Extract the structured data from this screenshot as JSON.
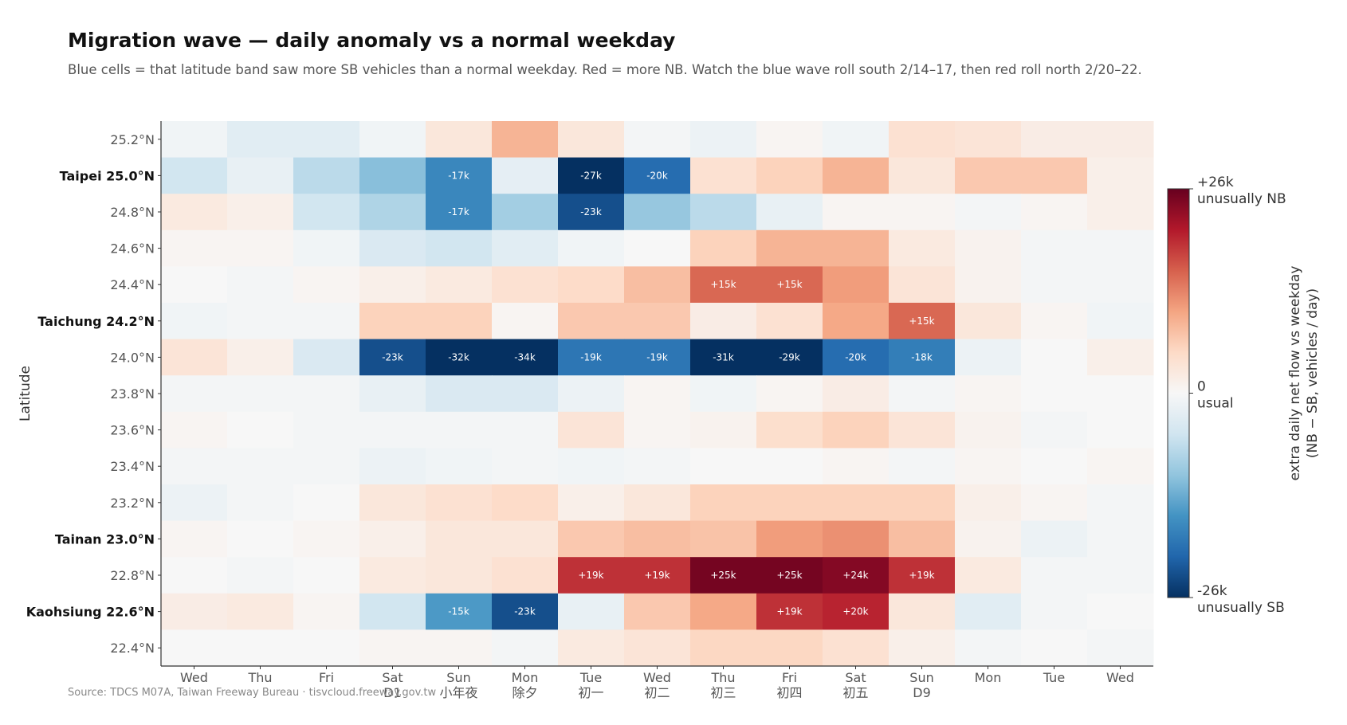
{
  "title": "Migration wave — daily anomaly vs a normal weekday",
  "subtitle": "Blue cells = that latitude band saw more SB vehicles than a normal weekday. Red = more NB. Watch the blue wave roll south 2/14–17, then red roll north 2/20–22.",
  "source": "Source: TDCS M07A, Taiwan Freeway Bureau  ·  tisvcloud.freeway.gov.tw",
  "chart_data": {
    "type": "heatmap",
    "ylabel": "Latitude",
    "colorbar": {
      "label_line1": "extra daily net flow vs weekday",
      "label_line2": "(NB − SB, vehicles / day)",
      "max_value": "+26k",
      "max_desc": "unusually NB",
      "mid_value": "0",
      "mid_desc": "usual",
      "min_value": "-26k",
      "min_desc": "unusually SB",
      "range": [
        -26,
        26
      ],
      "colors_low_to_high": [
        "#053061",
        "#2166ac",
        "#4393c3",
        "#92c5de",
        "#d1e5f0",
        "#f7f7f7",
        "#fddbc7",
        "#f4a582",
        "#d6604d",
        "#b2182b",
        "#67001f"
      ]
    },
    "x": [
      {
        "day": "Wed",
        "note": ""
      },
      {
        "day": "Thu",
        "note": ""
      },
      {
        "day": "Fri",
        "note": ""
      },
      {
        "day": "Sat",
        "note": "D1"
      },
      {
        "day": "Sun",
        "note": "小年夜"
      },
      {
        "day": "Mon",
        "note": "除夕"
      },
      {
        "day": "Tue",
        "note": "初一"
      },
      {
        "day": "Wed",
        "note": "初二"
      },
      {
        "day": "Thu",
        "note": "初三"
      },
      {
        "day": "Fri",
        "note": "初四"
      },
      {
        "day": "Sat",
        "note": "初五"
      },
      {
        "day": "Sun",
        "note": "D9"
      },
      {
        "day": "Mon",
        "note": ""
      },
      {
        "day": "Tue",
        "note": ""
      },
      {
        "day": "Wed",
        "note": ""
      }
    ],
    "y": [
      {
        "lat": "25.2°N",
        "city": ""
      },
      {
        "lat": "25.0°N",
        "city": "Taipei"
      },
      {
        "lat": "24.8°N",
        "city": ""
      },
      {
        "lat": "24.6°N",
        "city": ""
      },
      {
        "lat": "24.4°N",
        "city": ""
      },
      {
        "lat": "24.2°N",
        "city": "Taichung"
      },
      {
        "lat": "24.0°N",
        "city": ""
      },
      {
        "lat": "23.8°N",
        "city": ""
      },
      {
        "lat": "23.6°N",
        "city": ""
      },
      {
        "lat": "23.4°N",
        "city": ""
      },
      {
        "lat": "23.2°N",
        "city": ""
      },
      {
        "lat": "23.0°N",
        "city": "Tainan"
      },
      {
        "lat": "22.8°N",
        "city": ""
      },
      {
        "lat": "22.6°N",
        "city": "Kaohsiung"
      },
      {
        "lat": "22.4°N",
        "city": ""
      }
    ],
    "values_k": [
      [
        -1,
        -3,
        -3,
        -1,
        3,
        9,
        3,
        -0.5,
        -1.5,
        0.5,
        -1,
        4,
        3.5,
        2,
        2
      ],
      [
        -5,
        -2,
        -7,
        -11,
        -17,
        -2.5,
        -27,
        -20,
        4,
        6,
        9,
        3,
        7,
        7,
        1.5
      ],
      [
        2.5,
        1.5,
        -5,
        -8,
        -17,
        -9,
        -23,
        -10,
        -7,
        -2,
        0.5,
        0.5,
        -0.5,
        0.5,
        1.5
      ],
      [
        0.5,
        0.5,
        -1,
        -4,
        -5,
        -3,
        -1,
        0,
        6,
        9,
        9,
        2.5,
        1,
        -0.5,
        -0.5
      ],
      [
        0,
        -0.5,
        0.5,
        1.5,
        2.5,
        4,
        5,
        8,
        15,
        15,
        11,
        3.5,
        1,
        -0.5,
        -0.5
      ],
      [
        -1,
        -0.5,
        -0.5,
        6,
        6,
        0.5,
        7,
        7,
        2,
        4,
        10,
        15,
        3,
        0.5,
        -1
      ],
      [
        3.5,
        1.5,
        -4,
        -23,
        -32,
        -34,
        -19,
        -19,
        -31,
        -29,
        -20,
        -18,
        -1.5,
        0,
        1.5
      ],
      [
        -0.5,
        -0.5,
        -0.5,
        -2,
        -4,
        -4,
        -1.5,
        0.5,
        -1,
        0.5,
        2,
        -0.5,
        0.5,
        0,
        0
      ],
      [
        0.5,
        0,
        -0.5,
        -0.5,
        -0.5,
        -0.5,
        3.5,
        0.5,
        1,
        4.5,
        6,
        3.5,
        1,
        -0.5,
        0
      ],
      [
        -0.5,
        -0.5,
        -0.5,
        -1.5,
        -1,
        -0.5,
        -1,
        -0.5,
        0,
        0,
        0.5,
        -0.5,
        0.5,
        0,
        0.5
      ],
      [
        -1.5,
        -0.5,
        0,
        3,
        4,
        5,
        1.5,
        3,
        6,
        6,
        6,
        6,
        1.5,
        0.5,
        -0.5
      ],
      [
        0.5,
        0,
        0.5,
        1.5,
        3,
        3,
        7,
        8,
        7.5,
        11,
        12,
        8,
        1,
        -1.5,
        -0.5
      ],
      [
        0,
        -0.5,
        0,
        2.5,
        3,
        4,
        19,
        19,
        25,
        25,
        24,
        19,
        2.5,
        -0.5,
        -0.5
      ],
      [
        2,
        2.5,
        0.5,
        -5,
        -15,
        -23,
        -2,
        7,
        10,
        19,
        20,
        3,
        -3,
        -0.5,
        0
      ],
      [
        0,
        0,
        0,
        0.5,
        0.5,
        -0.5,
        2.5,
        3.5,
        5.5,
        5.5,
        4,
        1.5,
        -0.5,
        0,
        -0.5
      ]
    ],
    "annotations": [
      {
        "row": 1,
        "col": 4,
        "text": "-17k"
      },
      {
        "row": 1,
        "col": 6,
        "text": "-27k"
      },
      {
        "row": 1,
        "col": 7,
        "text": "-20k"
      },
      {
        "row": 2,
        "col": 4,
        "text": "-17k"
      },
      {
        "row": 2,
        "col": 6,
        "text": "-23k"
      },
      {
        "row": 4,
        "col": 8,
        "text": "+15k"
      },
      {
        "row": 4,
        "col": 9,
        "text": "+15k"
      },
      {
        "row": 5,
        "col": 11,
        "text": "+15k"
      },
      {
        "row": 6,
        "col": 3,
        "text": "-23k"
      },
      {
        "row": 6,
        "col": 4,
        "text": "-32k"
      },
      {
        "row": 6,
        "col": 5,
        "text": "-34k"
      },
      {
        "row": 6,
        "col": 6,
        "text": "-19k"
      },
      {
        "row": 6,
        "col": 7,
        "text": "-19k"
      },
      {
        "row": 6,
        "col": 8,
        "text": "-31k"
      },
      {
        "row": 6,
        "col": 9,
        "text": "-29k"
      },
      {
        "row": 6,
        "col": 10,
        "text": "-20k"
      },
      {
        "row": 6,
        "col": 11,
        "text": "-18k"
      },
      {
        "row": 12,
        "col": 6,
        "text": "+19k"
      },
      {
        "row": 12,
        "col": 7,
        "text": "+19k"
      },
      {
        "row": 12,
        "col": 8,
        "text": "+25k"
      },
      {
        "row": 12,
        "col": 9,
        "text": "+25k"
      },
      {
        "row": 12,
        "col": 10,
        "text": "+24k"
      },
      {
        "row": 12,
        "col": 11,
        "text": "+19k"
      },
      {
        "row": 13,
        "col": 4,
        "text": "-15k"
      },
      {
        "row": 13,
        "col": 5,
        "text": "-23k"
      },
      {
        "row": 13,
        "col": 9,
        "text": "+19k"
      },
      {
        "row": 13,
        "col": 10,
        "text": "+20k"
      }
    ]
  }
}
